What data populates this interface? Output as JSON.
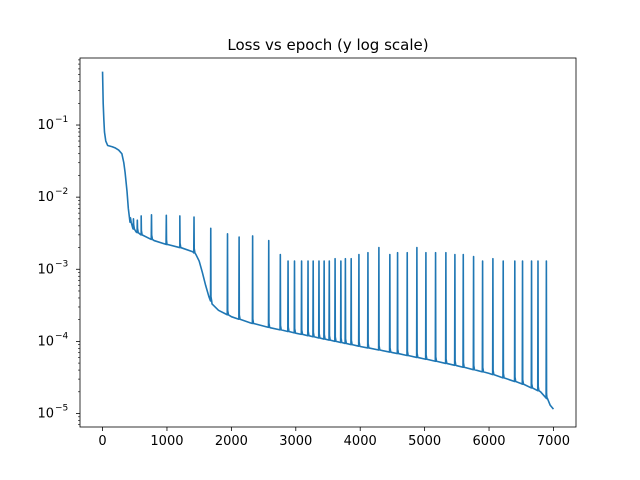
{
  "chart_data": {
    "type": "line",
    "title": "Loss vs epoch (y log scale)",
    "xlabel": "",
    "ylabel": "",
    "xlim": [
      -350,
      7350
    ],
    "ylim": [
      6.5e-06,
      0.85
    ],
    "yscale": "log",
    "grid": false,
    "x_ticks": [
      0,
      1000,
      2000,
      3000,
      4000,
      5000,
      6000,
      7000
    ],
    "x_tick_labels": [
      "0",
      "1000",
      "2000",
      "3000",
      "4000",
      "5000",
      "6000",
      "7000"
    ],
    "y_ticks": [
      1e-05,
      0.0001,
      0.001,
      0.01,
      0.1
    ],
    "y_tick_labels": [
      {
        "base": "10",
        "exp": "−5"
      },
      {
        "base": "10",
        "exp": "−4"
      },
      {
        "base": "10",
        "exp": "−3"
      },
      {
        "base": "10",
        "exp": "−2"
      },
      {
        "base": "10",
        "exp": "−1"
      }
    ],
    "series": [
      {
        "name": "",
        "color": "#1f77b4",
        "baseline": [
          [
            0,
            0.55
          ],
          [
            10,
            0.2
          ],
          [
            20,
            0.12
          ],
          [
            30,
            0.08
          ],
          [
            50,
            0.06
          ],
          [
            80,
            0.052
          ],
          [
            150,
            0.05
          ],
          [
            200,
            0.048
          ],
          [
            250,
            0.045
          ],
          [
            300,
            0.04
          ],
          [
            330,
            0.03
          ],
          [
            350,
            0.022
          ],
          [
            380,
            0.012
          ],
          [
            400,
            0.007
          ],
          [
            430,
            0.0045
          ],
          [
            470,
            0.0037
          ],
          [
            520,
            0.0033
          ],
          [
            600,
            0.003
          ],
          [
            800,
            0.0025
          ],
          [
            1000,
            0.0022
          ],
          [
            1200,
            0.002
          ],
          [
            1400,
            0.00175
          ],
          [
            1450,
            0.0016
          ],
          [
            1500,
            0.0013
          ],
          [
            1550,
            0.0009
          ],
          [
            1600,
            0.0006
          ],
          [
            1650,
            0.00042
          ],
          [
            1700,
            0.00033
          ],
          [
            1800,
            0.00027
          ],
          [
            2000,
            0.00022
          ],
          [
            2300,
            0.00018
          ],
          [
            2600,
            0.000155
          ],
          [
            3000,
            0.00013
          ],
          [
            3500,
            0.000105
          ],
          [
            4000,
            8.5e-05
          ],
          [
            4500,
            7e-05
          ],
          [
            5000,
            5.7e-05
          ],
          [
            5500,
            4.6e-05
          ],
          [
            6000,
            3.6e-05
          ],
          [
            6500,
            2.6e-05
          ],
          [
            6800,
            2e-05
          ],
          [
            6900,
            1.6e-05
          ],
          [
            6950,
            1.3e-05
          ],
          [
            7000,
            1.15e-05
          ]
        ],
        "spikes": [
          {
            "x": 430,
            "y": 0.0047
          },
          {
            "x": 480,
            "y": 0.005
          },
          {
            "x": 540,
            "y": 0.0048
          },
          {
            "x": 600,
            "y": 0.0055
          },
          {
            "x": 760,
            "y": 0.0057
          },
          {
            "x": 990,
            "y": 0.0056
          },
          {
            "x": 1200,
            "y": 0.0055
          },
          {
            "x": 1420,
            "y": 0.0053
          },
          {
            "x": 1680,
            "y": 0.0037
          },
          {
            "x": 1940,
            "y": 0.0031
          },
          {
            "x": 2120,
            "y": 0.0028
          },
          {
            "x": 2330,
            "y": 0.0029
          },
          {
            "x": 2580,
            "y": 0.0025
          },
          {
            "x": 2760,
            "y": 0.0016
          },
          {
            "x": 2880,
            "y": 0.0013
          },
          {
            "x": 2980,
            "y": 0.0013
          },
          {
            "x": 3090,
            "y": 0.0013
          },
          {
            "x": 3190,
            "y": 0.0013
          },
          {
            "x": 3270,
            "y": 0.0013
          },
          {
            "x": 3360,
            "y": 0.0013
          },
          {
            "x": 3440,
            "y": 0.0013
          },
          {
            "x": 3520,
            "y": 0.0013
          },
          {
            "x": 3610,
            "y": 0.0014
          },
          {
            "x": 3700,
            "y": 0.0013
          },
          {
            "x": 3770,
            "y": 0.0014
          },
          {
            "x": 3860,
            "y": 0.0014
          },
          {
            "x": 3980,
            "y": 0.0016
          },
          {
            "x": 4120,
            "y": 0.0017
          },
          {
            "x": 4290,
            "y": 0.002
          },
          {
            "x": 4460,
            "y": 0.0016
          },
          {
            "x": 4580,
            "y": 0.0017
          },
          {
            "x": 4730,
            "y": 0.0017
          },
          {
            "x": 4880,
            "y": 0.002
          },
          {
            "x": 5020,
            "y": 0.0017
          },
          {
            "x": 5170,
            "y": 0.0017
          },
          {
            "x": 5330,
            "y": 0.0017
          },
          {
            "x": 5470,
            "y": 0.0016
          },
          {
            "x": 5600,
            "y": 0.0016
          },
          {
            "x": 5760,
            "y": 0.0015
          },
          {
            "x": 5900,
            "y": 0.0013
          },
          {
            "x": 6060,
            "y": 0.0014
          },
          {
            "x": 6220,
            "y": 0.0013
          },
          {
            "x": 6400,
            "y": 0.0013
          },
          {
            "x": 6520,
            "y": 0.0013
          },
          {
            "x": 6660,
            "y": 0.0013
          },
          {
            "x": 6760,
            "y": 0.0013
          },
          {
            "x": 6890,
            "y": 0.0013
          }
        ]
      }
    ]
  }
}
